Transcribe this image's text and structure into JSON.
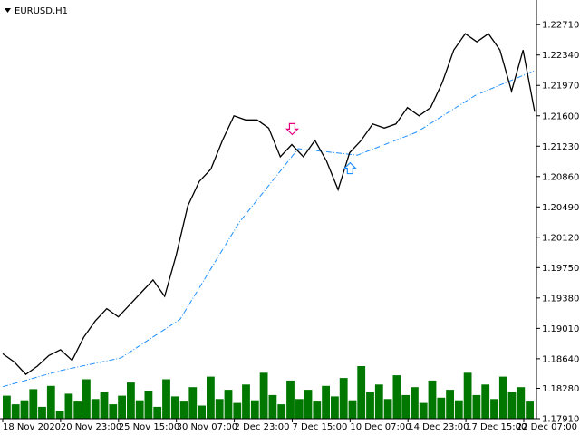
{
  "window": {
    "symbol_label": "EURUSD,H1",
    "menu_icon": "triangle-down-icon"
  },
  "colors": {
    "background": "#ffffff",
    "price_line": "#000000",
    "trailing_stop": "#1e90ff",
    "sell_segment": "#e6007e",
    "volume": "#007800",
    "sell_arrow": "#e6007e",
    "buy_arrow": "#1e90ff",
    "axis": "#000000"
  },
  "chart_data": {
    "type": "line",
    "symbol": "EURUSD",
    "timeframe": "H1",
    "y_ticks": [
      "1.22710",
      "1.22340",
      "1.21970",
      "1.21600",
      "1.21230",
      "1.20860",
      "1.20490",
      "1.20120",
      "1.19750",
      "1.19380",
      "1.19010",
      "1.18640",
      "1.18280",
      "1.17910"
    ],
    "ylim": [
      1.1791,
      1.229
    ],
    "x_ticks": [
      "18 Nov 2020",
      "20 Nov 23:00",
      "25 Nov 15:00",
      "30 Nov 07:00",
      "2 Dec 23:00",
      "7 Dec 15:00",
      "10 Dec 07:00",
      "14 Dec 23:00",
      "17 Dec 15:00",
      "22 Dec 07:00"
    ],
    "price_series": {
      "name": "EURUSD H1 close",
      "x": [
        "18 Nov 2020",
        "18 Nov",
        "19 Nov",
        "19 Nov",
        "20 Nov",
        "20 Nov 23:00",
        "21 Nov",
        "23 Nov",
        "24 Nov",
        "25 Nov",
        "25 Nov 15:00",
        "26 Nov",
        "27 Nov",
        "27 Nov",
        "30 Nov 07:00",
        "30 Nov",
        "1 Dec",
        "1 Dec",
        "2 Dec",
        "2 Dec 23:00",
        "3 Dec",
        "3 Dec",
        "4 Dec",
        "4 Dec",
        "7 Dec",
        "7 Dec 15:00",
        "8 Dec",
        "8 Dec",
        "9 Dec",
        "9 Dec",
        "10 Dec 07:00",
        "10 Dec",
        "11 Dec",
        "11 Dec",
        "14 Dec",
        "14 Dec 23:00",
        "15 Dec",
        "15 Dec",
        "16 Dec",
        "16 Dec",
        "17 Dec 15:00",
        "17 Dec",
        "18 Dec",
        "18 Dec",
        "21 Dec",
        "21 Dec",
        "22 Dec 07:00"
      ],
      "y": [
        1.187,
        1.186,
        1.1845,
        1.1855,
        1.1868,
        1.1875,
        1.1862,
        1.189,
        1.191,
        1.1925,
        1.1915,
        1.193,
        1.1945,
        1.196,
        1.194,
        1.199,
        1.205,
        1.208,
        1.2095,
        1.213,
        1.216,
        1.2155,
        1.2155,
        1.2145,
        1.211,
        1.2125,
        1.211,
        1.213,
        1.2105,
        1.207,
        1.2115,
        1.213,
        1.215,
        1.2145,
        1.215,
        1.217,
        1.216,
        1.217,
        1.22,
        1.224,
        1.226,
        1.225,
        1.226,
        1.224,
        1.219,
        1.224,
        1.2165
      ]
    },
    "trailing_stop_series": {
      "name": "Trailing stop",
      "x": [
        "18 Nov 2020",
        "20 Nov 23:00",
        "25 Nov 15:00",
        "30 Nov 07:00",
        "2 Dec 23:00",
        "7 Dec 15:00",
        "10 Dec 07:00",
        "14 Dec 23:00",
        "17 Dec 15:00",
        "22 Dec 07:00"
      ],
      "y": [
        1.183,
        1.185,
        1.1865,
        1.1912,
        1.203,
        1.212,
        1.2112,
        1.214,
        1.2185,
        1.2215
      ]
    },
    "signals": [
      {
        "type": "sell",
        "x": "7 Dec 15:00",
        "y": 1.2135,
        "icon": "sell-arrow-down-icon"
      },
      {
        "type": "buy",
        "x": "10 Dec 07:00",
        "y": 1.2105,
        "icon": "buy-arrow-up-icon"
      }
    ],
    "volume": {
      "name": "Volume",
      "values": [
        35,
        22,
        28,
        45,
        18,
        50,
        12,
        38,
        26,
        60,
        30,
        40,
        22,
        35,
        55,
        28,
        42,
        18,
        60,
        34,
        26,
        48,
        20,
        64,
        30,
        44,
        24,
        52,
        28,
        70,
        36,
        22,
        58,
        30,
        44,
        26,
        50,
        34,
        62,
        28,
        80,
        40,
        52,
        30,
        66,
        36,
        48,
        24,
        58,
        32,
        44,
        28,
        70,
        36,
        52,
        30,
        64,
        40,
        48,
        26
      ]
    }
  }
}
